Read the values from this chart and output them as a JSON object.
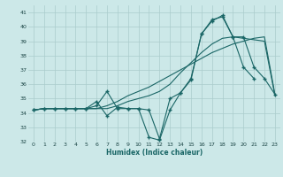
{
  "x": [
    0,
    1,
    2,
    3,
    4,
    5,
    6,
    7,
    8,
    9,
    10,
    11,
    12,
    13,
    14,
    15,
    16,
    17,
    18,
    19,
    20,
    21,
    22,
    23
  ],
  "line1": [
    34.2,
    34.3,
    34.3,
    34.3,
    34.3,
    34.3,
    34.3,
    34.5,
    34.8,
    35.2,
    35.5,
    35.8,
    36.2,
    36.6,
    37.0,
    37.4,
    37.8,
    38.2,
    38.5,
    38.8,
    39.0,
    39.2,
    39.3,
    35.3
  ],
  "line2": [
    34.2,
    34.3,
    34.3,
    34.3,
    34.3,
    34.3,
    34.3,
    34.3,
    34.5,
    34.8,
    35.0,
    35.2,
    35.5,
    36.0,
    36.8,
    37.5,
    38.2,
    38.8,
    39.2,
    39.3,
    39.2,
    39.1,
    39.0,
    35.2
  ],
  "line3": [
    34.2,
    34.3,
    34.3,
    34.3,
    34.3,
    34.3,
    34.5,
    35.5,
    34.3,
    34.3,
    34.3,
    32.3,
    32.1,
    34.2,
    35.4,
    36.3,
    39.5,
    40.4,
    40.8,
    39.3,
    37.2,
    36.4,
    null,
    null
  ],
  "line4": [
    34.2,
    34.3,
    34.3,
    34.3,
    34.3,
    34.3,
    34.8,
    33.8,
    34.4,
    34.3,
    34.3,
    34.2,
    32.2,
    35.0,
    35.4,
    36.4,
    39.5,
    40.5,
    40.7,
    39.3,
    39.3,
    37.2,
    36.4,
    35.3
  ],
  "bg_color": "#cce8e8",
  "grid_color": "#aacccc",
  "line_color": "#1a6666",
  "xlabel": "Humidex (Indice chaleur)",
  "xlim": [
    -0.5,
    23.5
  ],
  "ylim": [
    32,
    41.5
  ],
  "yticks": [
    32,
    33,
    34,
    35,
    36,
    37,
    38,
    39,
    40,
    41
  ],
  "xticks": [
    0,
    1,
    2,
    3,
    4,
    5,
    6,
    7,
    8,
    9,
    10,
    11,
    12,
    13,
    14,
    15,
    16,
    17,
    18,
    19,
    20,
    21,
    22,
    23
  ]
}
